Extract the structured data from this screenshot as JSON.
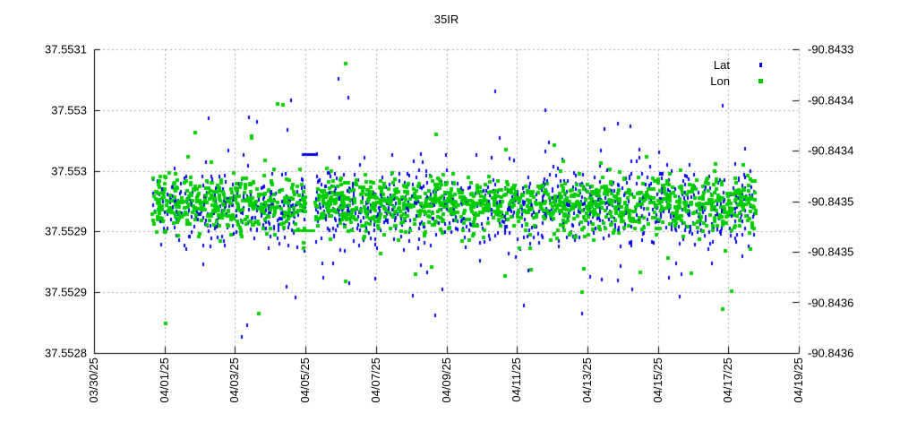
{
  "title": "35IR",
  "chart_data": {
    "type": "scatter",
    "title": "35IR",
    "grid": {
      "show": true,
      "color": "#a9a9a9",
      "style": "dashed"
    },
    "legend": {
      "position": "top-right-inside",
      "entries": [
        "Lat",
        "Lon"
      ]
    },
    "x_axis": {
      "type": "date",
      "span_days": 20,
      "tick_days": [
        0,
        2,
        4,
        6,
        8,
        10,
        12,
        14,
        16,
        18,
        20
      ],
      "tick_labels": [
        "03/30/25",
        "04/01/25",
        "04/03/25",
        "04/05/25",
        "04/07/25",
        "04/09/25",
        "04/11/25",
        "04/13/25",
        "04/15/25",
        "04/17/25",
        "04/19/25"
      ],
      "label_rotation_deg": 90
    },
    "y_left_axis": {
      "series": "Lat",
      "range": [
        37.5528,
        37.5531
      ],
      "tick_values": [
        37.5531,
        37.55304,
        37.55298,
        37.55292,
        37.55286,
        37.5528
      ],
      "tick_labels": [
        "37.5531",
        "37.553",
        "37.553",
        "37.5529",
        "37.5529",
        "37.5528"
      ]
    },
    "y_right_axis": {
      "series": "Lon",
      "range": [
        -90.8436,
        -90.8433
      ],
      "tick_values": [
        -90.8433,
        -90.84335,
        -90.8434,
        -90.84345,
        -90.8435,
        -90.84355,
        -90.8436
      ],
      "tick_labels": [
        "-90.8433",
        "-90.8434",
        "-90.8434",
        "-90.8435",
        "-90.8435",
        "-90.8436",
        "-90.8436"
      ]
    },
    "series": [
      {
        "name": "Lat",
        "axis": "left",
        "color": "#0000e6",
        "marker": "rect",
        "marker_px": [
          2,
          4
        ],
        "distribution": {
          "time_span_days": [
            1.66,
            18.8
          ],
          "gap_days": [
            6.0,
            6.28
          ],
          "center": 37.552943,
          "sd": 1.68e-05,
          "tail_sd": 4.2e-05,
          "tail_fraction": 0.13,
          "n_points": 1250
        },
        "flat_segment": {
          "days": [
            5.9,
            6.33
          ],
          "value": 37.552996
        },
        "outliers": [
          [
            5.59,
            37.55305
          ],
          [
            7.22,
            37.553052
          ],
          [
            11.39,
            37.553058
          ],
          [
            17.84,
            37.553044
          ],
          [
            3.25,
            37.553032
          ],
          [
            4.4,
            37.553033
          ],
          [
            4.19,
            37.552816
          ],
          [
            4.34,
            37.552827
          ],
          [
            13.85,
            37.552839
          ],
          [
            12.2,
            37.552847
          ],
          [
            9.89,
            37.552863
          ],
          [
            9.05,
            37.552857
          ],
          [
            5.72,
            37.552855
          ]
        ]
      },
      {
        "name": "Lon",
        "axis": "right",
        "color": "#00cc00",
        "marker": "square",
        "marker_px": [
          4,
          4
        ],
        "distribution": {
          "time_span_days": [
            1.66,
            18.8
          ],
          "gap_days": [
            6.0,
            6.28
          ],
          "center": -90.843453,
          "sd": 1.33e-05,
          "tail_sd": 2.85e-05,
          "tail_fraction": 0.09,
          "n_points": 1550
        },
        "flat_segment": {
          "days": [
            5.64,
            6.28
          ],
          "value": -90.84348
        },
        "outliers": [
          [
            7.14,
            -90.843314
          ],
          [
            5.21,
            -90.843354
          ],
          [
            5.36,
            -90.843355
          ],
          [
            2.87,
            -90.843382
          ],
          [
            4.47,
            -90.843386
          ],
          [
            2.03,
            -90.843571
          ],
          [
            4.68,
            -90.843561
          ],
          [
            7.14,
            -90.843529
          ],
          [
            17.84,
            -90.843557
          ],
          [
            18.09,
            -90.843539
          ],
          [
            13.85,
            -90.84354
          ]
        ]
      }
    ],
    "seed": 20250404
  }
}
